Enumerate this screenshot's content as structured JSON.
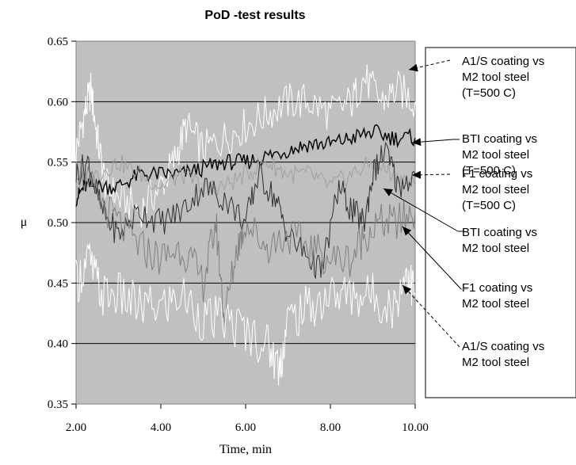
{
  "chart_data": {
    "type": "line",
    "title": "PoD -test results",
    "xlabel": "Time, min",
    "ylabel": "μ",
    "xlim": [
      2.0,
      10.0
    ],
    "ylim": [
      0.35,
      0.65
    ],
    "x_ticks": [
      "2.00",
      "4.00",
      "6.00",
      "8.00",
      "10.00"
    ],
    "y_ticks": [
      "0.35",
      "0.40",
      "0.45",
      "0.50",
      "0.55",
      "0.60",
      "0.65"
    ],
    "grid": "horizontal",
    "plot_background": "#c0c0c0",
    "series": [
      {
        "name": "A1/S coating vs M2 tool steel (T=500 C)",
        "color": "#ffffff",
        "points": [
          [
            2.0,
            0.56
          ],
          [
            2.2,
            0.59
          ],
          [
            2.35,
            0.61
          ],
          [
            2.5,
            0.57
          ],
          [
            2.7,
            0.53
          ],
          [
            3.0,
            0.52
          ],
          [
            3.5,
            0.51
          ],
          [
            4.0,
            0.53
          ],
          [
            4.3,
            0.55
          ],
          [
            4.6,
            0.58
          ],
          [
            5.0,
            0.56
          ],
          [
            5.5,
            0.57
          ],
          [
            6.0,
            0.58
          ],
          [
            6.5,
            0.59
          ],
          [
            7.0,
            0.6
          ],
          [
            7.5,
            0.6
          ],
          [
            8.0,
            0.59
          ],
          [
            8.5,
            0.6
          ],
          [
            8.8,
            0.62
          ],
          [
            9.2,
            0.6
          ],
          [
            9.6,
            0.61
          ],
          [
            10.0,
            0.6
          ]
        ]
      },
      {
        "name": "BTI coating vs M2 tool steel (T=500 C)",
        "color": "#000000",
        "points": [
          [
            2.0,
            0.52
          ],
          [
            2.2,
            0.53
          ],
          [
            2.5,
            0.53
          ],
          [
            3.0,
            0.53
          ],
          [
            3.5,
            0.54
          ],
          [
            4.0,
            0.54
          ],
          [
            4.5,
            0.54
          ],
          [
            5.0,
            0.545
          ],
          [
            5.5,
            0.55
          ],
          [
            6.0,
            0.55
          ],
          [
            6.5,
            0.555
          ],
          [
            7.0,
            0.56
          ],
          [
            7.5,
            0.565
          ],
          [
            8.0,
            0.565
          ],
          [
            8.5,
            0.57
          ],
          [
            9.0,
            0.575
          ],
          [
            9.5,
            0.57
          ],
          [
            10.0,
            0.57
          ]
        ]
      },
      {
        "name": "F1 coating vs M2 tool steel (T=500 C)",
        "color": "#a0a0a0",
        "points": [
          [
            2.0,
            0.53
          ],
          [
            2.5,
            0.54
          ],
          [
            3.0,
            0.55
          ],
          [
            3.5,
            0.54
          ],
          [
            4.0,
            0.53
          ],
          [
            4.5,
            0.54
          ],
          [
            5.0,
            0.53
          ],
          [
            5.5,
            0.53
          ],
          [
            6.0,
            0.54
          ],
          [
            6.5,
            0.55
          ],
          [
            7.0,
            0.54
          ],
          [
            7.5,
            0.54
          ],
          [
            8.0,
            0.53
          ],
          [
            8.5,
            0.54
          ],
          [
            9.0,
            0.55
          ],
          [
            9.5,
            0.54
          ],
          [
            10.0,
            0.53
          ]
        ]
      },
      {
        "name": "BTI coating vs M2 tool steel",
        "color": "#303030",
        "points": [
          [
            2.0,
            0.54
          ],
          [
            2.3,
            0.55
          ],
          [
            2.6,
            0.51
          ],
          [
            3.0,
            0.49
          ],
          [
            3.5,
            0.51
          ],
          [
            4.0,
            0.5
          ],
          [
            4.5,
            0.51
          ],
          [
            5.0,
            0.53
          ],
          [
            5.5,
            0.52
          ],
          [
            6.0,
            0.5
          ],
          [
            6.3,
            0.54
          ],
          [
            6.7,
            0.52
          ],
          [
            7.0,
            0.49
          ],
          [
            7.5,
            0.47
          ],
          [
            7.8,
            0.46
          ],
          [
            8.2,
            0.53
          ],
          [
            8.5,
            0.51
          ],
          [
            8.8,
            0.5
          ],
          [
            9.0,
            0.54
          ],
          [
            9.3,
            0.56
          ],
          [
            9.6,
            0.53
          ],
          [
            10.0,
            0.54
          ]
        ]
      },
      {
        "name": "F1 coating vs M2 tool steel",
        "color": "#808080",
        "points": [
          [
            2.0,
            0.55
          ],
          [
            2.5,
            0.52
          ],
          [
            3.0,
            0.5
          ],
          [
            3.5,
            0.48
          ],
          [
            4.0,
            0.47
          ],
          [
            4.5,
            0.48
          ],
          [
            5.0,
            0.45
          ],
          [
            5.3,
            0.5
          ],
          [
            5.5,
            0.42
          ],
          [
            5.8,
            0.48
          ],
          [
            6.0,
            0.5
          ],
          [
            6.5,
            0.48
          ],
          [
            7.0,
            0.49
          ],
          [
            7.5,
            0.48
          ],
          [
            8.0,
            0.47
          ],
          [
            8.5,
            0.47
          ],
          [
            8.8,
            0.49
          ],
          [
            9.2,
            0.5
          ],
          [
            9.6,
            0.5
          ],
          [
            10.0,
            0.51
          ]
        ]
      },
      {
        "name": "A1/S coating vs M2 tool steel",
        "color": "#ffffff",
        "points": [
          [
            2.0,
            0.45
          ],
          [
            2.3,
            0.47
          ],
          [
            2.6,
            0.44
          ],
          [
            3.0,
            0.44
          ],
          [
            3.5,
            0.43
          ],
          [
            4.0,
            0.43
          ],
          [
            4.5,
            0.44
          ],
          [
            5.0,
            0.42
          ],
          [
            5.5,
            0.42
          ],
          [
            6.0,
            0.41
          ],
          [
            6.5,
            0.4
          ],
          [
            6.8,
            0.38
          ],
          [
            7.0,
            0.42
          ],
          [
            7.5,
            0.43
          ],
          [
            8.0,
            0.44
          ],
          [
            8.5,
            0.44
          ],
          [
            9.0,
            0.44
          ],
          [
            9.5,
            0.43
          ],
          [
            9.8,
            0.46
          ],
          [
            10.0,
            0.44
          ]
        ]
      }
    ],
    "legend_lines": [
      [
        "A1/S coating vs",
        "M2 tool steel",
        "(T=500 C)"
      ],
      [
        "BTI coating vs",
        "M2 tool steel",
        "(T=500 C)"
      ],
      [
        "F1 coating vs",
        "M2 tool steel",
        "(T=500 C)"
      ],
      [
        "BTI coating vs",
        "M2 tool steel"
      ],
      [
        "F1 coating vs",
        "M2 tool steel"
      ],
      [
        "A1/S coating vs",
        "M2 tool steel"
      ]
    ]
  }
}
